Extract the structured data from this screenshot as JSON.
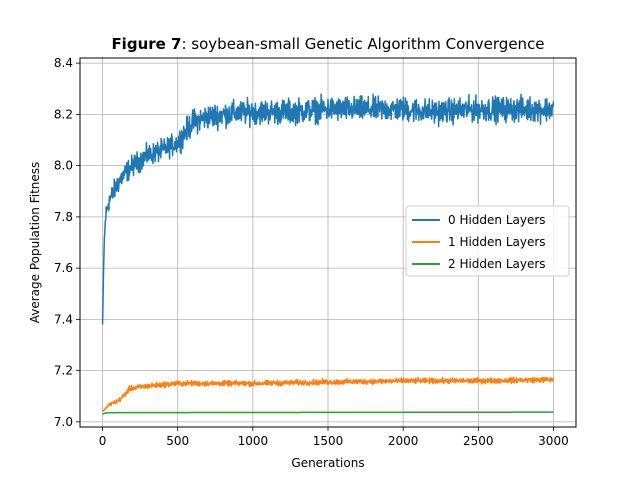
{
  "chart_data": {
    "type": "line",
    "title_bold": "Figure 7",
    "title_rest": ": soybean-small Genetic Algorithm Convergence",
    "xlabel": "Generations",
    "ylabel": "Average Population Fitness",
    "xlim": [
      -150,
      3150
    ],
    "ylim": [
      6.98,
      8.42
    ],
    "xticks": [
      0,
      500,
      1000,
      1500,
      2000,
      2500,
      3000
    ],
    "yticks": [
      7.0,
      7.2,
      7.4,
      7.6,
      7.8,
      8.0,
      8.2,
      8.4
    ],
    "xtick_labels": [
      "0",
      "500",
      "1000",
      "1500",
      "2000",
      "2500",
      "3000"
    ],
    "ytick_labels": [
      "7.0",
      "7.2",
      "7.4",
      "7.6",
      "7.8",
      "8.0",
      "8.2",
      "8.4"
    ],
    "grid": true,
    "legend_position": "center-right",
    "series": [
      {
        "name": "0 Hidden Layers",
        "color": "#1f77b4",
        "x": [
          0,
          10,
          20,
          40,
          60,
          100,
          150,
          200,
          300,
          400,
          500,
          550,
          600,
          700,
          800,
          1000,
          1200,
          1500,
          1800,
          2000,
          2200,
          2500,
          2800,
          3000
        ],
        "y": [
          7.38,
          7.68,
          7.8,
          7.86,
          7.88,
          7.93,
          7.97,
          8.0,
          8.04,
          8.06,
          8.09,
          8.13,
          8.17,
          8.19,
          8.2,
          8.21,
          8.21,
          8.22,
          8.22,
          8.22,
          8.21,
          8.22,
          8.22,
          8.22
        ],
        "noise": [
          0.0,
          0.05,
          0.06,
          0.06,
          0.06,
          0.06,
          0.06,
          0.06,
          0.06,
          0.06,
          0.06,
          0.07,
          0.07,
          0.07,
          0.07,
          0.07,
          0.07,
          0.07,
          0.07,
          0.07,
          0.07,
          0.07,
          0.07,
          0.07
        ]
      },
      {
        "name": "1 Hidden Layers",
        "color": "#ff7f0e",
        "x": [
          0,
          50,
          100,
          140,
          180,
          300,
          500,
          1000,
          1500,
          2000,
          2500,
          3000
        ],
        "y": [
          7.04,
          7.07,
          7.08,
          7.1,
          7.13,
          7.14,
          7.15,
          7.15,
          7.155,
          7.16,
          7.16,
          7.165
        ],
        "noise": [
          0.0,
          0.01,
          0.012,
          0.015,
          0.015,
          0.015,
          0.015,
          0.015,
          0.015,
          0.015,
          0.015,
          0.015
        ]
      },
      {
        "name": "2 Hidden Layers",
        "color": "#2ca02c",
        "x": [
          0,
          20,
          100,
          3000
        ],
        "y": [
          7.03,
          7.035,
          7.036,
          7.038
        ],
        "noise": [
          0,
          0,
          0,
          0
        ]
      }
    ]
  }
}
